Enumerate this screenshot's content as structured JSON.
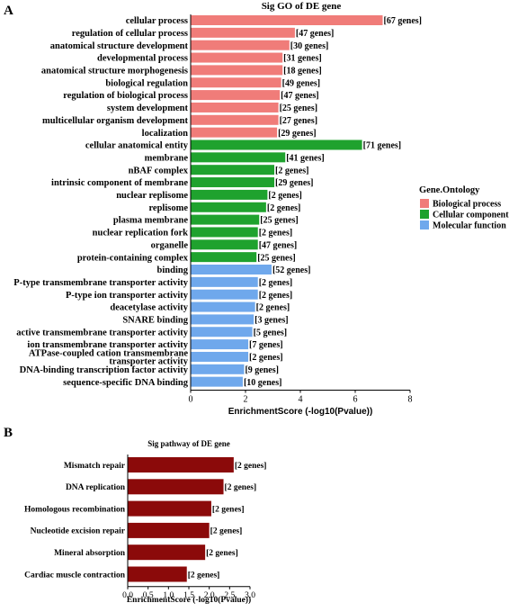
{
  "panel_a": {
    "letter": "A",
    "chart_data": {
      "type": "bar",
      "orientation": "horizontal",
      "title": "Sig GO of DE gene",
      "xlabel": "EnrichmentScore (-log10(Pvalue))",
      "xlim": [
        0,
        8
      ],
      "xticks": [
        "0",
        "2",
        "4",
        "6",
        "8"
      ],
      "grid": false,
      "legend_placement": "right",
      "legend": {
        "title": "Gene.Ontology",
        "items": [
          {
            "label": "Biological process",
            "color": "#F07C79"
          },
          {
            "label": "Cellular component",
            "color": "#1FA22E"
          },
          {
            "label": "Molecular function",
            "color": "#6FA8EC"
          }
        ]
      },
      "bars": [
        {
          "category": "cellular process",
          "value": 7.0,
          "label": "[67 genes]",
          "group": 0
        },
        {
          "category": "regulation of cellular process",
          "value": 3.8,
          "label": "[47 genes]",
          "group": 0
        },
        {
          "category": "anatomical structure development",
          "value": 3.6,
          "label": "[30 genes]",
          "group": 0
        },
        {
          "category": "developmental process",
          "value": 3.35,
          "label": "[31 genes]",
          "group": 0
        },
        {
          "category": "anatomical structure morphogenesis",
          "value": 3.35,
          "label": "[18 genes]",
          "group": 0
        },
        {
          "category": "biological regulation",
          "value": 3.3,
          "label": "[49 genes]",
          "group": 0
        },
        {
          "category": "regulation of biological process",
          "value": 3.25,
          "label": "[47 genes]",
          "group": 0
        },
        {
          "category": "system development",
          "value": 3.2,
          "label": "[25 genes]",
          "group": 0
        },
        {
          "category": "multicellular organism development",
          "value": 3.2,
          "label": "[27 genes]",
          "group": 0
        },
        {
          "category": "localization",
          "value": 3.15,
          "label": "[29 genes]",
          "group": 0
        },
        {
          "category": "cellular anatomical entity",
          "value": 6.25,
          "label": "[71 genes]",
          "group": 1
        },
        {
          "category": "membrane",
          "value": 3.45,
          "label": "[41 genes]",
          "group": 1
        },
        {
          "category": "nBAF complex",
          "value": 3.05,
          "label": "[2 genes]",
          "group": 1
        },
        {
          "category": "intrinsic component of membrane",
          "value": 3.05,
          "label": "[29 genes]",
          "group": 1
        },
        {
          "category": "nuclear replisome",
          "value": 2.8,
          "label": "[2 genes]",
          "group": 1
        },
        {
          "category": "replisome",
          "value": 2.75,
          "label": "[2 genes]",
          "group": 1
        },
        {
          "category": "plasma membrane",
          "value": 2.5,
          "label": "[25 genes]",
          "group": 1
        },
        {
          "category": "nuclear replication fork",
          "value": 2.45,
          "label": "[2 genes]",
          "group": 1
        },
        {
          "category": "organelle",
          "value": 2.45,
          "label": "[47 genes]",
          "group": 1
        },
        {
          "category": "protein-containing complex",
          "value": 2.4,
          "label": "[25 genes]",
          "group": 1
        },
        {
          "category": "binding",
          "value": 2.95,
          "label": "[52 genes]",
          "group": 2
        },
        {
          "category": "P-type transmembrane transporter activity",
          "value": 2.45,
          "label": "[2 genes]",
          "group": 2
        },
        {
          "category": "P-type ion transporter activity",
          "value": 2.45,
          "label": "[2 genes]",
          "group": 2
        },
        {
          "category": "deacetylase activity",
          "value": 2.35,
          "label": "[2 genes]",
          "group": 2
        },
        {
          "category": "SNARE binding",
          "value": 2.3,
          "label": "[3 genes]",
          "group": 2
        },
        {
          "category": "active transmembrane transporter activity",
          "value": 2.25,
          "label": "[5 genes]",
          "group": 2
        },
        {
          "category": "ion transmembrane transporter activity",
          "value": 2.1,
          "label": "[7 genes]",
          "group": 2
        },
        {
          "category": "ATPase-coupled cation transmembrane transporter activity",
          "value": 2.1,
          "label": "[2 genes]",
          "group": 2
        },
        {
          "category": "DNA-binding transcription factor activity",
          "value": 1.95,
          "label": "[9 genes]",
          "group": 2
        },
        {
          "category": "sequence-specific DNA binding",
          "value": 1.9,
          "label": "[10 genes]",
          "group": 2
        }
      ]
    }
  },
  "panel_b": {
    "letter": "B",
    "chart_data": {
      "type": "bar",
      "orientation": "horizontal",
      "title": "Sig pathway of DE gene",
      "xlabel": "EnrichmentScore (-log10(Pvalue))",
      "xlim": [
        0,
        3.0
      ],
      "xticks": [
        "0.0",
        "0.5",
        "1.0",
        "1.5",
        "2.0",
        "2.5",
        "3.0"
      ],
      "grid": false,
      "bar_color": "#8B0A0A",
      "bars": [
        {
          "category": "Mismatch repair",
          "value": 2.6,
          "label": "[2 genes]"
        },
        {
          "category": "DNA replication",
          "value": 2.35,
          "label": "[2 genes]"
        },
        {
          "category": "Homologous recombination",
          "value": 2.05,
          "label": "[2 genes]"
        },
        {
          "category": "Nucleotide excision repair",
          "value": 2.0,
          "label": "[2 genes]"
        },
        {
          "category": "Mineral absorption",
          "value": 1.9,
          "label": "[2 genes]"
        },
        {
          "category": "Cardiac muscle contraction",
          "value": 1.45,
          "label": "[2 genes]"
        }
      ]
    }
  }
}
